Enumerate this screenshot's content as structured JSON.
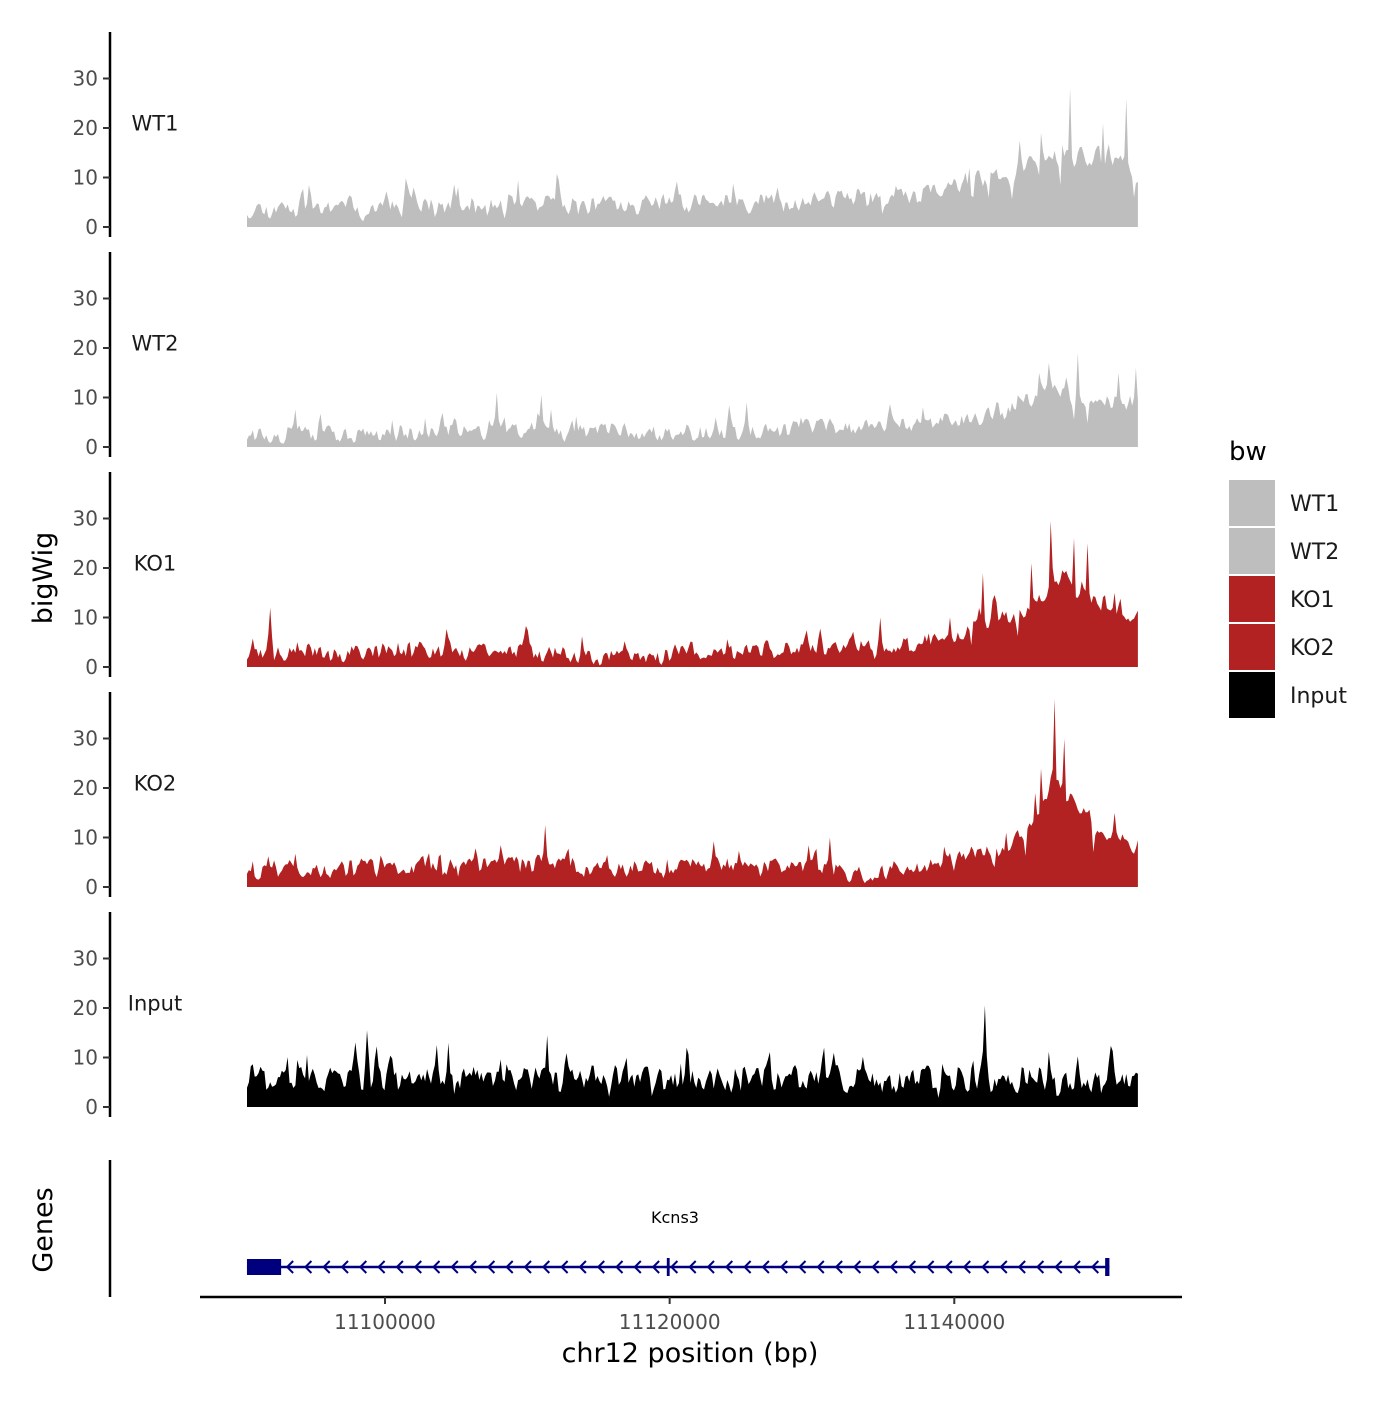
{
  "chart_data": {
    "type": "area",
    "y_axis_title": "bigWig",
    "genes_axis_title": "Genes",
    "x_axis_title": "chr12 position (bp)",
    "x_range": [
      11087000,
      11156000
    ],
    "data_x_range": [
      11090300,
      11152900
    ],
    "y_range": [
      0,
      39
    ],
    "y_ticks": [
      "0",
      "10",
      "20",
      "30"
    ],
    "x_ticks": [
      {
        "value": 11100000,
        "label": "11100000"
      },
      {
        "value": 11120000,
        "label": "11120000"
      },
      {
        "value": 11140000,
        "label": "11140000"
      }
    ],
    "tracks": [
      {
        "name": "WT1",
        "color": "#bebebe",
        "profile": [
          [
            11090300,
            3
          ],
          [
            11100000,
            3.5
          ],
          [
            11110000,
            3.5
          ],
          [
            11120000,
            4
          ],
          [
            11130000,
            4.5
          ],
          [
            11138000,
            5.5
          ],
          [
            11141000,
            8
          ],
          [
            11144000,
            11
          ],
          [
            11147000,
            14
          ],
          [
            11150000,
            13
          ],
          [
            11152900,
            10
          ]
        ],
        "noise": 2.6,
        "peaks": [
          [
            11148100,
            28
          ],
          [
            11152100,
            26
          ],
          [
            11150500,
            21
          ],
          [
            11146100,
            19
          ],
          [
            11144600,
            17.5
          ],
          [
            11141100,
            12
          ],
          [
            11094700,
            8.5
          ],
          [
            11109400,
            9.5
          ]
        ],
        "seed": 11
      },
      {
        "name": "WT2",
        "color": "#bebebe",
        "profile": [
          [
            11090300,
            2
          ],
          [
            11100000,
            2
          ],
          [
            11110000,
            3
          ],
          [
            11120000,
            2.5
          ],
          [
            11130000,
            3
          ],
          [
            11138000,
            4
          ],
          [
            11141000,
            5
          ],
          [
            11144000,
            7
          ],
          [
            11147000,
            11
          ],
          [
            11150000,
            9
          ],
          [
            11152900,
            8
          ]
        ],
        "noise": 2.4,
        "peaks": [
          [
            11148700,
            19
          ],
          [
            11152700,
            16
          ],
          [
            11151500,
            15
          ],
          [
            11146700,
            17
          ],
          [
            11111000,
            10.5
          ],
          [
            11107800,
            11
          ],
          [
            11125400,
            9
          ]
        ],
        "seed": 23
      },
      {
        "name": "KO1",
        "color": "#b22222",
        "profile": [
          [
            11090300,
            2
          ],
          [
            11100000,
            2.5
          ],
          [
            11110000,
            2.5
          ],
          [
            11114000,
            1.2
          ],
          [
            11119000,
            0.6
          ],
          [
            11120500,
            2.5
          ],
          [
            11130000,
            3
          ],
          [
            11138000,
            4
          ],
          [
            11140000,
            5
          ],
          [
            11142000,
            8
          ],
          [
            11145000,
            11
          ],
          [
            11147500,
            18
          ],
          [
            11150000,
            12
          ],
          [
            11152900,
            10
          ]
        ],
        "noise": 2.4,
        "peaks": [
          [
            11146800,
            29.5
          ],
          [
            11148400,
            26
          ],
          [
            11149400,
            25
          ],
          [
            11145400,
            21
          ],
          [
            11142000,
            19
          ],
          [
            11091900,
            12
          ],
          [
            11134800,
            10
          ],
          [
            11151300,
            15
          ]
        ],
        "seed": 37
      },
      {
        "name": "KO2",
        "color": "#b22222",
        "profile": [
          [
            11090300,
            2.5
          ],
          [
            11100000,
            3
          ],
          [
            11110000,
            4
          ],
          [
            11120000,
            3
          ],
          [
            11130000,
            3.5
          ],
          [
            11133500,
            1.5
          ],
          [
            11136000,
            3
          ],
          [
            11140000,
            5
          ],
          [
            11143000,
            7
          ],
          [
            11145500,
            11
          ],
          [
            11147000,
            22
          ],
          [
            11148500,
            16
          ],
          [
            11150500,
            10
          ],
          [
            11152900,
            7
          ]
        ],
        "noise": 2.4,
        "peaks": [
          [
            11147000,
            38
          ],
          [
            11147700,
            30
          ],
          [
            11146100,
            24
          ],
          [
            11145700,
            19
          ],
          [
            11151300,
            15
          ],
          [
            11111300,
            12.5
          ],
          [
            11131300,
            10
          ],
          [
            11143600,
            11
          ]
        ],
        "seed": 53
      },
      {
        "name": "Input",
        "color": "#000000",
        "profile": [
          [
            11090300,
            4.5
          ],
          [
            11100000,
            4.5
          ],
          [
            11110000,
            4.5
          ],
          [
            11120000,
            4.5
          ],
          [
            11130000,
            4.5
          ],
          [
            11140000,
            4.5
          ],
          [
            11152900,
            4.5
          ]
        ],
        "noise": 3.6,
        "peaks": [
          [
            11142100,
            20.5
          ],
          [
            11098700,
            15.5
          ],
          [
            11111400,
            14.5
          ],
          [
            11104400,
            13
          ],
          [
            11121200,
            12
          ],
          [
            11094500,
            10.5
          ],
          [
            11130900,
            12
          ]
        ],
        "seed": 71
      }
    ],
    "gene": {
      "name": "Kcns3",
      "color": "#00007f",
      "start": 11090300,
      "end": 11150900,
      "exons": [
        [
          11090300,
          11092700
        ],
        [
          11119800,
          11120000
        ],
        [
          11150600,
          11150900
        ]
      ],
      "strand": "-"
    },
    "legend": {
      "title": "bw",
      "entries": [
        {
          "label": "WT1",
          "color": "#bebebe"
        },
        {
          "label": "WT2",
          "color": "#bebebe"
        },
        {
          "label": "KO1",
          "color": "#b22222"
        },
        {
          "label": "KO2",
          "color": "#b22222"
        },
        {
          "label": "Input",
          "color": "#000000"
        }
      ]
    }
  }
}
